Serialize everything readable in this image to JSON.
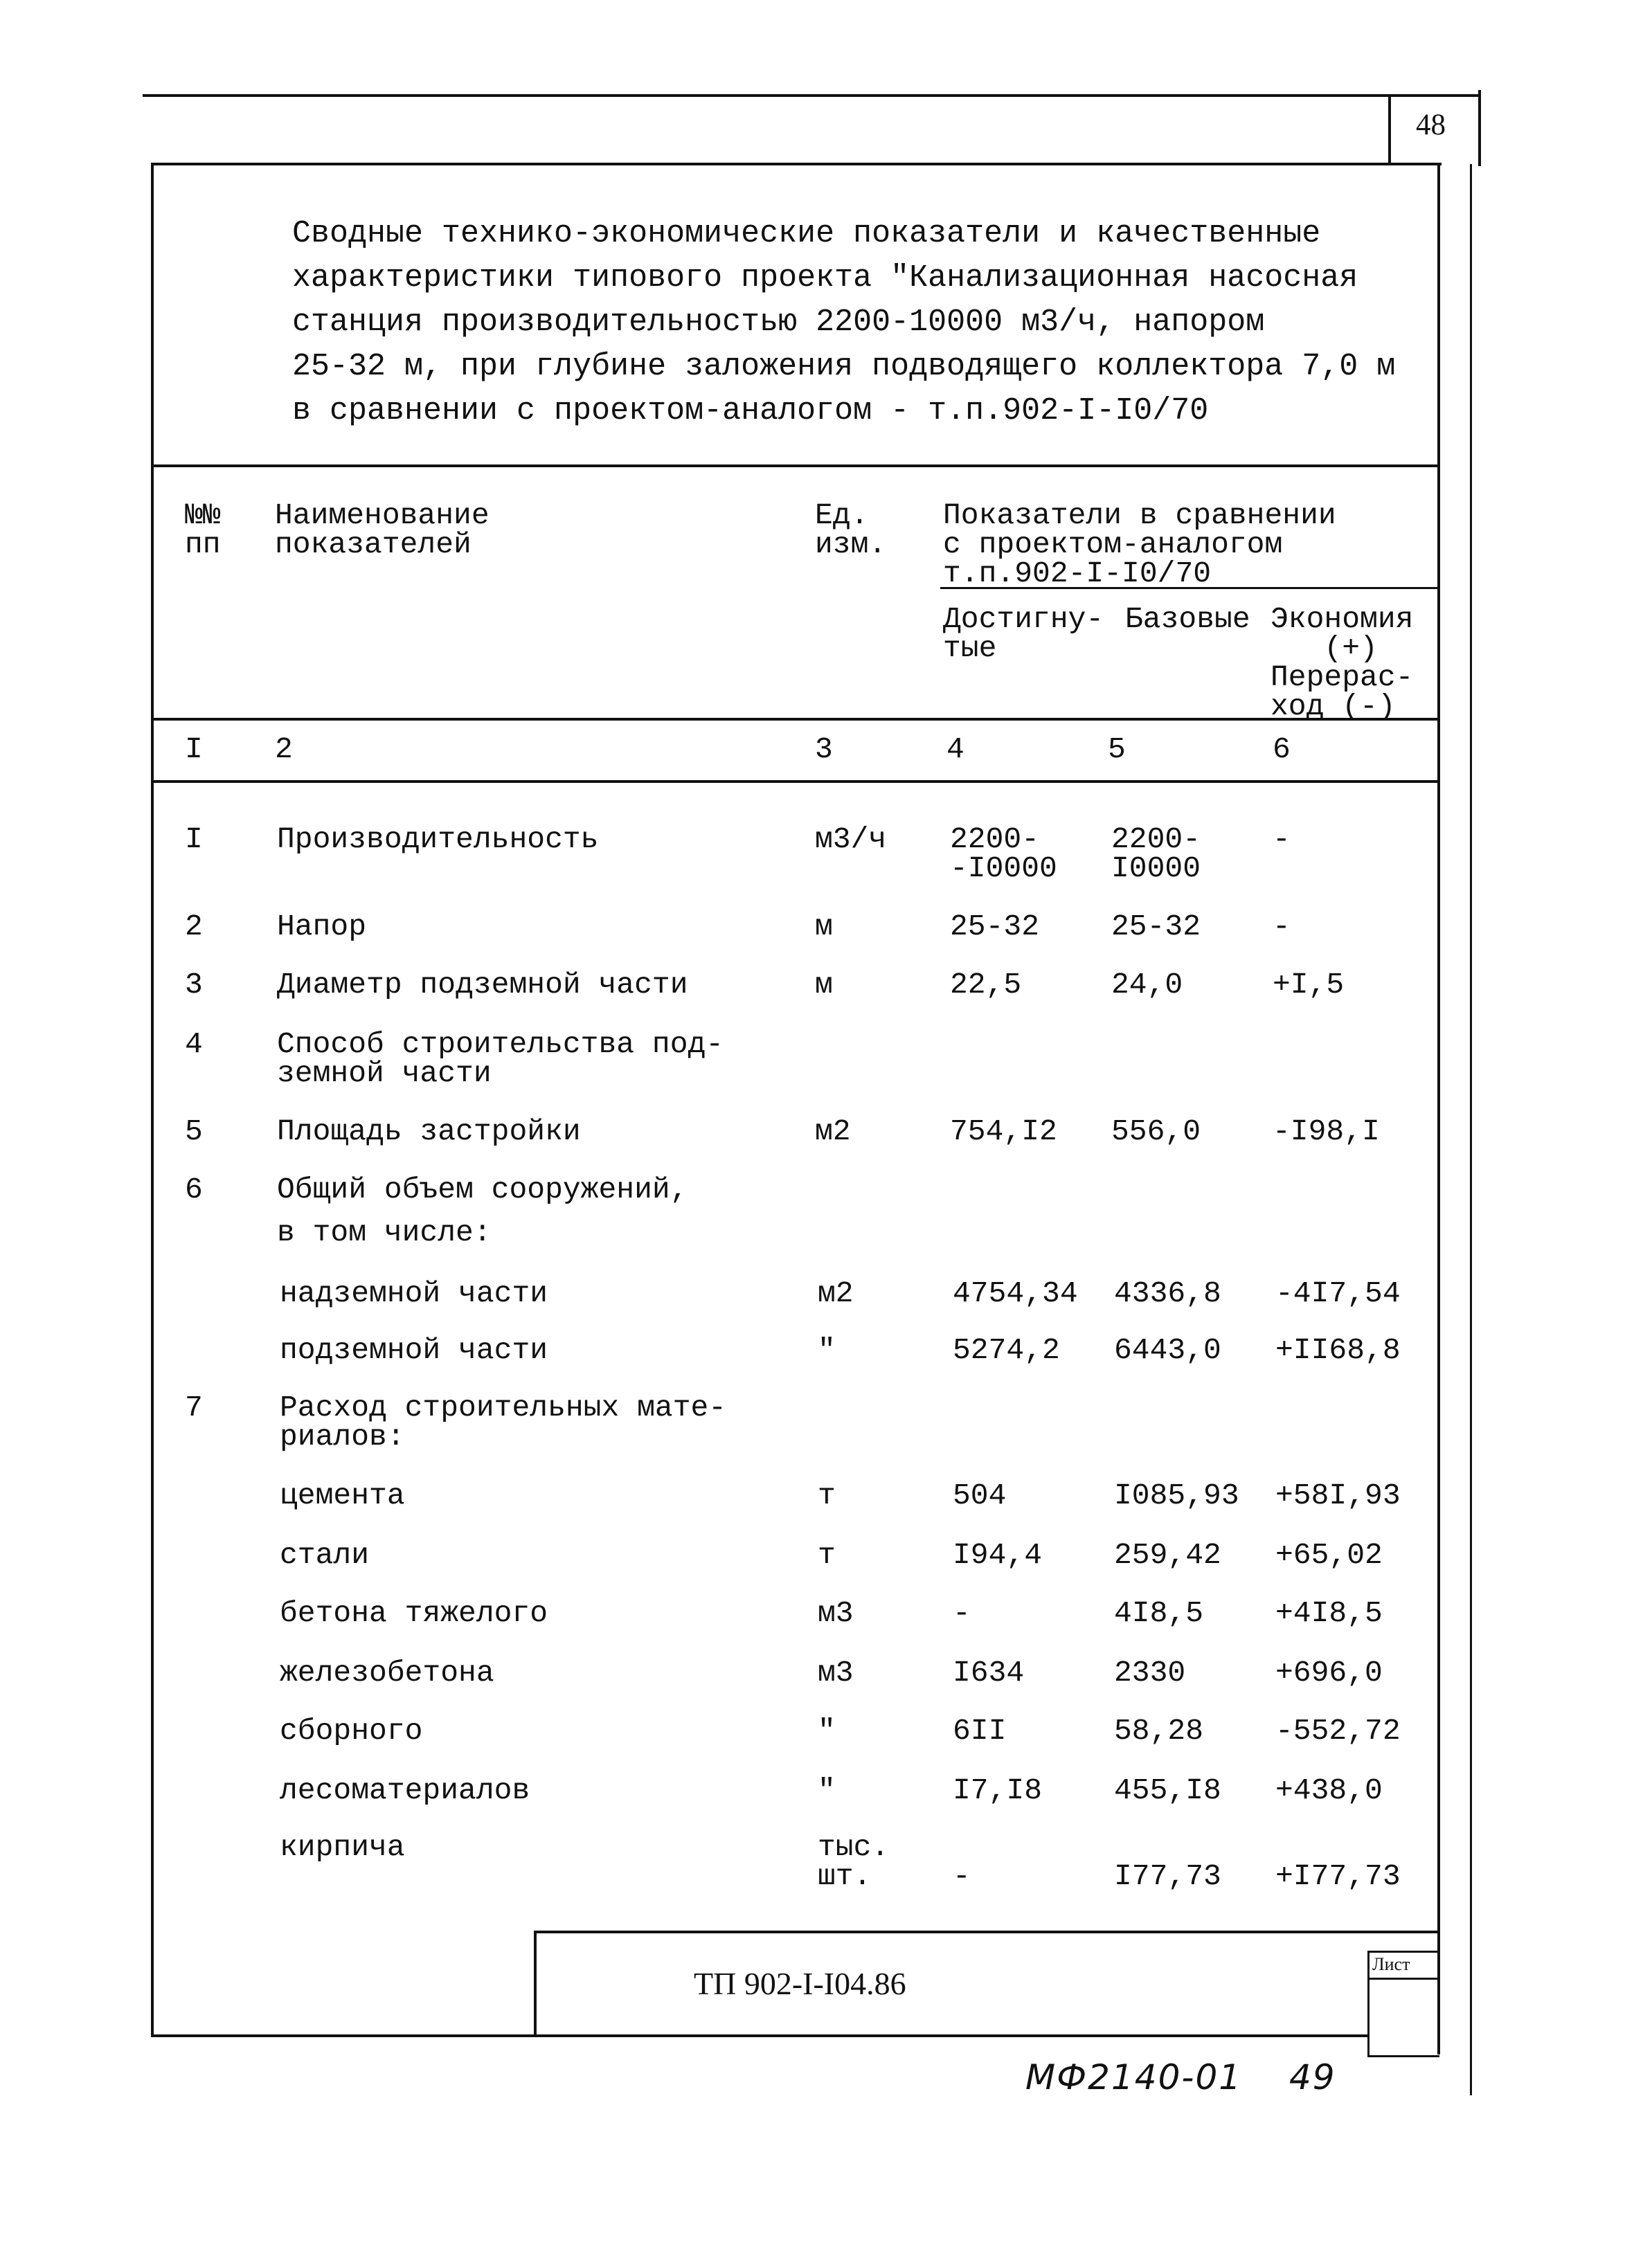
{
  "page_number": "48",
  "title": "Сводные технико-экономические показатели и качественные\nхарактеристики типового проекта \"Канализационная насосная\nстанция производительностью 2200-10000 м3/ч, напором\n25-32 м, при глубине заложения подводящего коллектора 7,0 м\nв сравнении с проектом-аналогом - т.п.902-I-I0/70",
  "header": {
    "num": "№№\nпп",
    "name": "Наименование\nпоказателей",
    "unit": "Ед.\nизм.",
    "compare": "Показатели в сравнении\nс проектом-аналогом\nт.п.902-I-I0/70",
    "achieved": "Достигну-\nтые",
    "base": "Базовые",
    "diff": "Экономия\n   (+)\nПерерас-\nход (-)"
  },
  "column_numbers": [
    "I",
    "2",
    "3",
    "4",
    "5",
    "6"
  ],
  "rows": [
    {
      "n": "I",
      "name": "Производительность",
      "unit": "м3/ч",
      "achieved": "2200-\n-I0000",
      "base": "2200-\nI0000",
      "diff": "-"
    },
    {
      "n": "2",
      "name": "Напор",
      "unit": "м",
      "achieved": "25-32",
      "base": "25-32",
      "diff": "-"
    },
    {
      "n": "3",
      "name": "Диаметр подземной части",
      "unit": "м",
      "achieved": "22,5",
      "base": "24,0",
      "diff": "+I,5"
    },
    {
      "n": "4",
      "name": "Способ строительства под-\nземной части",
      "unit": "",
      "achieved": "",
      "base": "",
      "diff": ""
    },
    {
      "n": "5",
      "name": "Площадь застройки",
      "unit": "м2",
      "achieved": "754,I2",
      "base": "556,0",
      "diff": "-I98,I"
    },
    {
      "n": "6",
      "name": "Общий объем сооружений,",
      "unit": "",
      "achieved": "",
      "base": "",
      "diff": ""
    },
    {
      "n": "",
      "name": "в том числе:",
      "unit": "",
      "achieved": "",
      "base": "",
      "diff": ""
    },
    {
      "n": "",
      "name": "надземной части",
      "unit": "м2",
      "achieved": "4754,34",
      "base": "4336,8",
      "diff": "-4I7,54"
    },
    {
      "n": "",
      "name": "подземной части",
      "unit": "\"",
      "achieved": "5274,2",
      "base": "6443,0",
      "diff": "+II68,8"
    },
    {
      "n": "7",
      "name": "Расход строительных мате-\nриалов:",
      "unit": "",
      "achieved": "",
      "base": "",
      "diff": ""
    },
    {
      "n": "",
      "name": "цемента",
      "unit": "т",
      "achieved": "504",
      "base": "I085,93",
      "diff": "+58I,93"
    },
    {
      "n": "",
      "name": "стали",
      "unit": "т",
      "achieved": "I94,4",
      "base": "259,42",
      "diff": "+65,02"
    },
    {
      "n": "",
      "name": "бетона тяжелого",
      "unit": "м3",
      "achieved": "-",
      "base": "4I8,5",
      "diff": "+4I8,5"
    },
    {
      "n": "",
      "name": "железобетона",
      "unit": "м3",
      "achieved": "I634",
      "base": "2330",
      "diff": "+696,0"
    },
    {
      "n": "",
      "name": "сборного",
      "unit": "\"",
      "achieved": "6II",
      "base": "58,28",
      "diff": "-552,72"
    },
    {
      "n": "",
      "name": "лесоматериалов",
      "unit": "\"",
      "achieved": "I7,I8",
      "base": "455,I8",
      "diff": "+438,0"
    },
    {
      "n": "",
      "name": "кирпича",
      "unit": "тыс.\nшт.",
      "achieved": "\n-",
      "base": "\nI77,73",
      "diff": "\n+I77,73"
    }
  ],
  "stamp": {
    "code": "ТП 902-I-I04.86",
    "sheet_label": "Лист"
  },
  "handwritten": {
    "code": "МФ2140-01",
    "page": "49"
  }
}
